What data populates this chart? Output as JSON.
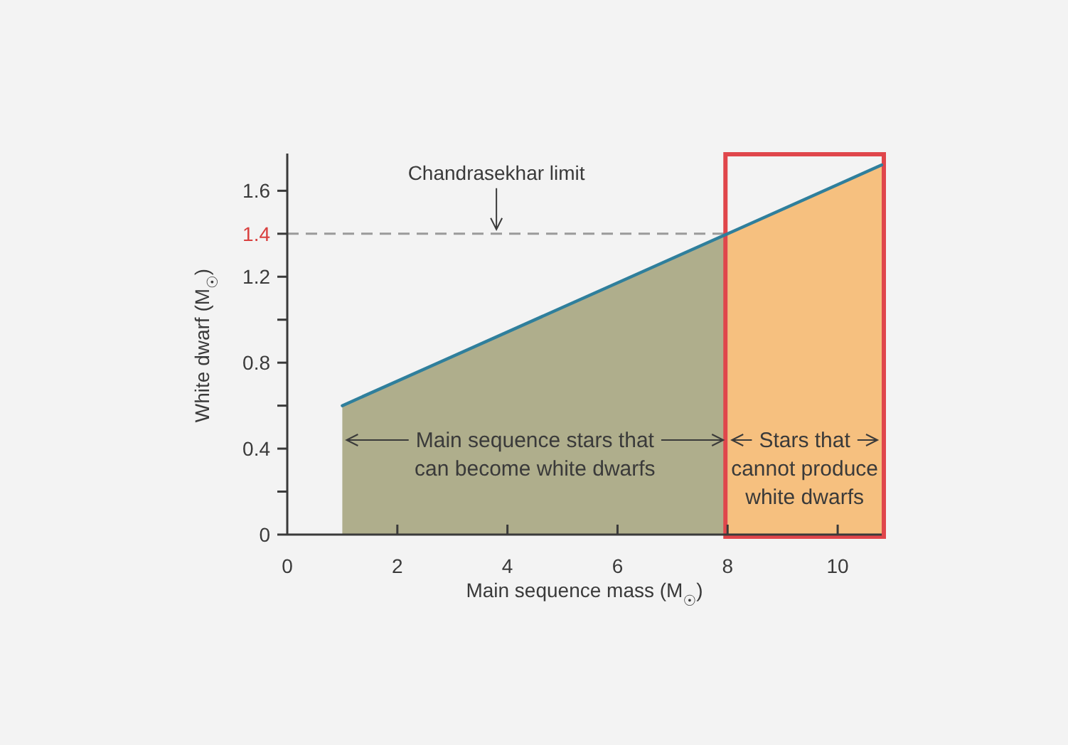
{
  "chart_data": {
    "type": "area",
    "xlabel": "Main sequence mass (M$_{☉}$)",
    "ylabel": "White dwarf (M$_{☉}$)",
    "xlim": [
      0,
      10.8
    ],
    "xticks": [
      0,
      2,
      4,
      6,
      8,
      10
    ],
    "ylim": [
      0,
      1.76
    ],
    "yticks": [
      0,
      {
        "value": 0.2,
        "label": null
      },
      0.4,
      {
        "value": 0.6,
        "label": null
      },
      0.8,
      {
        "value": 1.0,
        "label": null
      },
      1.2,
      1.4,
      1.6
    ],
    "series": [
      {
        "color": "#afae8c",
        "x": [
          1,
          8
        ],
        "values": [
          0.6,
          1.4
        ]
      },
      {
        "color": "#f6c07f",
        "x": [
          8,
          10.8
        ],
        "values": [
          1.4,
          1.72
        ]
      },
      {
        "type": "line",
        "color": "#2f7f9c",
        "x": [
          1,
          10.8
        ],
        "values": [
          0.6,
          1.72
        ]
      }
    ],
    "ref_lines": [
      {
        "axis": "y",
        "value": 1.4,
        "color": "#9a9a9a",
        "line_style": "dashed"
      }
    ],
    "annotations": [
      {
        "text": "Chandrasekhar limit",
        "x": 3.8,
        "y": 1.4
      },
      {
        "text": "Main sequence stars that\ncan become white dwarfs",
        "x": 8,
        "y": 0.44
      },
      "Stars that\ncannot produce\nwhite dwarfs"
    ]
  }
}
